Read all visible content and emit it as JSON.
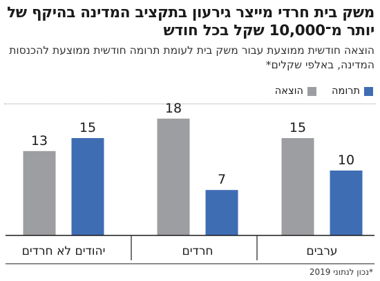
{
  "header": {
    "title": "משק בית חרדי מייצר גירעון בתקציב המדינה בהיקף של יותר מ־10,000 שקל בכל חודש",
    "subtitle": "הוצאה חודשית ממוצעת עבור משק בית לעומת תרומה חודשית ממוצעת להכנסות המדינה, באלפי שקלים*"
  },
  "footnote": "*נכון לנתוני 2019",
  "colors": {
    "expense": "#9d9ea1",
    "contribution": "#3f6db3",
    "axis": "#1a1a1a"
  },
  "chart_data": {
    "type": "bar",
    "categories": [
      "ערבים",
      "חרדים",
      "יהודים לא חרדים"
    ],
    "series": [
      {
        "name": "הוצאה",
        "values": [
          15,
          18,
          13
        ]
      },
      {
        "name": "תרומה",
        "values": [
          10,
          7,
          15
        ]
      }
    ],
    "ylim": [
      0,
      18
    ],
    "grid": false,
    "legend_position": "top-right",
    "data_labels": true,
    "unit": "אלפי שקלים"
  }
}
